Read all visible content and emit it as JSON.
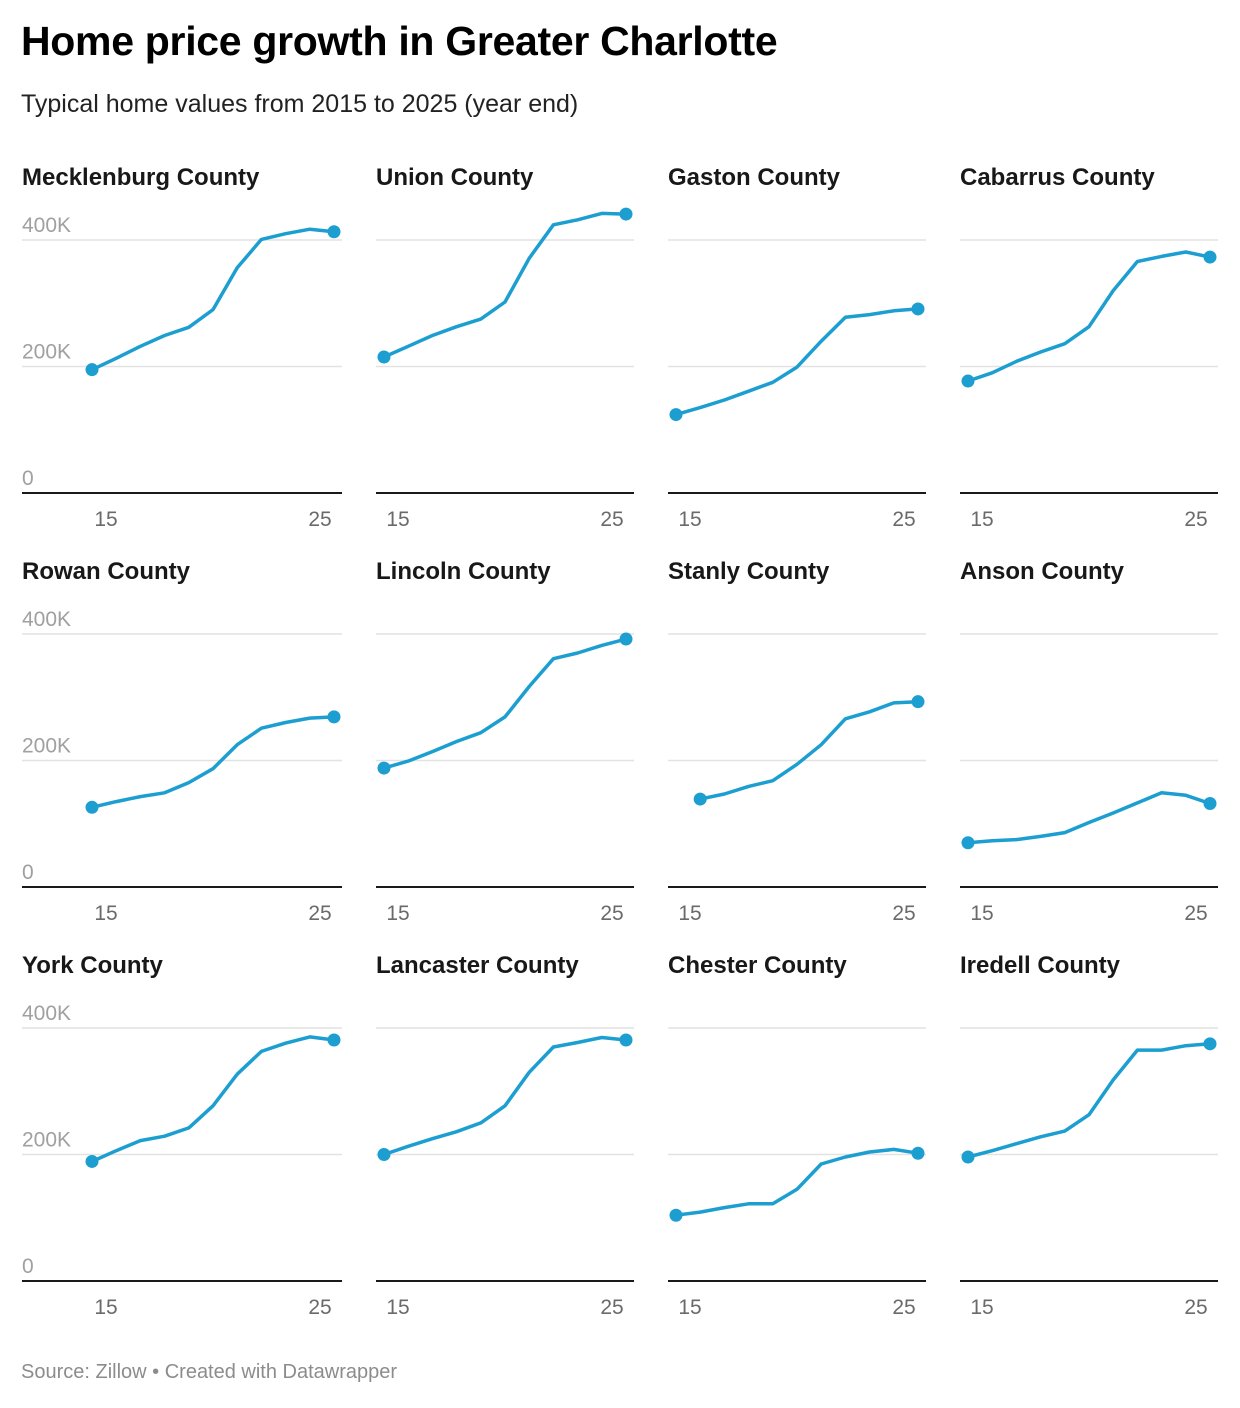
{
  "title": "Home price growth in Greater Charlotte",
  "subtitle": "Typical home values from 2015 to 2025 (year end)",
  "footer": "Source: Zillow • Created with Datawrapper",
  "line_color": "#1c9fd0",
  "chart_data": {
    "type": "line",
    "layout": "small-multiples 4x3",
    "x": [
      2015,
      2016,
      2017,
      2018,
      2019,
      2020,
      2021,
      2022,
      2023,
      2024,
      2025
    ],
    "x_tick_labels": [
      "15",
      "25"
    ],
    "y_ticks": [
      0,
      200000,
      400000
    ],
    "y_tick_labels": [
      "0",
      "200K",
      "400K"
    ],
    "ylim": [
      0,
      400000
    ],
    "grid": true,
    "panels": [
      {
        "name": "Mecklenburg County",
        "x": [
          2015,
          2016,
          2017,
          2018,
          2019,
          2020,
          2021,
          2022,
          2023,
          2024,
          2025
        ],
        "values": [
          195000,
          213000,
          232000,
          249000,
          262000,
          290000,
          356000,
          401000,
          410000,
          417000,
          413000
        ]
      },
      {
        "name": "Union County",
        "x": [
          2015,
          2016,
          2017,
          2018,
          2019,
          2020,
          2021,
          2022,
          2023,
          2024,
          2025
        ],
        "values": [
          215000,
          232000,
          249000,
          263000,
          275000,
          302000,
          371000,
          424000,
          432000,
          442000,
          441000
        ]
      },
      {
        "name": "Gaston County",
        "x": [
          2015,
          2016,
          2017,
          2018,
          2019,
          2020,
          2021,
          2022,
          2023,
          2024,
          2025
        ],
        "values": [
          124000,
          135000,
          147000,
          161000,
          175000,
          199000,
          240000,
          278000,
          282000,
          288000,
          291000
        ]
      },
      {
        "name": "Cabarrus County",
        "x": [
          2015,
          2016,
          2017,
          2018,
          2019,
          2020,
          2021,
          2022,
          2023,
          2024,
          2025
        ],
        "values": [
          177000,
          190000,
          208000,
          223000,
          236000,
          263000,
          320000,
          366000,
          374000,
          381000,
          373000
        ]
      },
      {
        "name": "Rowan County",
        "x": [
          2015,
          2016,
          2017,
          2018,
          2019,
          2020,
          2021,
          2022,
          2023,
          2024,
          2025
        ],
        "values": [
          126000,
          135000,
          143000,
          149000,
          165000,
          187000,
          225000,
          251000,
          260000,
          267000,
          269000
        ]
      },
      {
        "name": "Lincoln County",
        "x": [
          2015,
          2016,
          2017,
          2018,
          2019,
          2020,
          2021,
          2022,
          2023,
          2024,
          2025
        ],
        "values": [
          188000,
          199000,
          214000,
          230000,
          244000,
          269000,
          317000,
          361000,
          370000,
          382000,
          392000
        ]
      },
      {
        "name": "Stanly County",
        "x": [
          2016,
          2017,
          2018,
          2019,
          2020,
          2021,
          2022,
          2023,
          2024,
          2025
        ],
        "values": [
          139000,
          147000,
          159000,
          168000,
          194000,
          225000,
          266000,
          277000,
          291000,
          293000
        ]
      },
      {
        "name": "Anson County",
        "x": [
          2015,
          2016,
          2017,
          2018,
          2019,
          2020,
          2021,
          2022,
          2023,
          2024,
          2025
        ],
        "values": [
          70000,
          73000,
          75000,
          80000,
          86000,
          102000,
          117000,
          133000,
          149000,
          145000,
          132000
        ]
      },
      {
        "name": "York County",
        "x": [
          2015,
          2016,
          2017,
          2018,
          2019,
          2020,
          2021,
          2022,
          2023,
          2024,
          2025
        ],
        "values": [
          189000,
          206000,
          222000,
          229000,
          242000,
          277000,
          327000,
          363000,
          376000,
          386000,
          381000
        ]
      },
      {
        "name": "Lancaster County",
        "x": [
          2015,
          2016,
          2017,
          2018,
          2019,
          2020,
          2021,
          2022,
          2023,
          2024,
          2025
        ],
        "values": [
          200000,
          213000,
          225000,
          236000,
          250000,
          277000,
          330000,
          370000,
          377000,
          385000,
          381000
        ]
      },
      {
        "name": "Chester County",
        "x": [
          2015,
          2016,
          2017,
          2018,
          2019,
          2020,
          2021,
          2022,
          2023,
          2024,
          2025
        ],
        "values": [
          104000,
          109000,
          116000,
          122000,
          122000,
          145000,
          185000,
          196000,
          204000,
          208000,
          202000
        ]
      },
      {
        "name": "Iredell County",
        "x": [
          2015,
          2016,
          2017,
          2018,
          2019,
          2020,
          2021,
          2022,
          2023,
          2024,
          2025
        ],
        "values": [
          196000,
          206000,
          217000,
          228000,
          237000,
          263000,
          318000,
          365000,
          365000,
          372000,
          375000
        ]
      }
    ]
  }
}
